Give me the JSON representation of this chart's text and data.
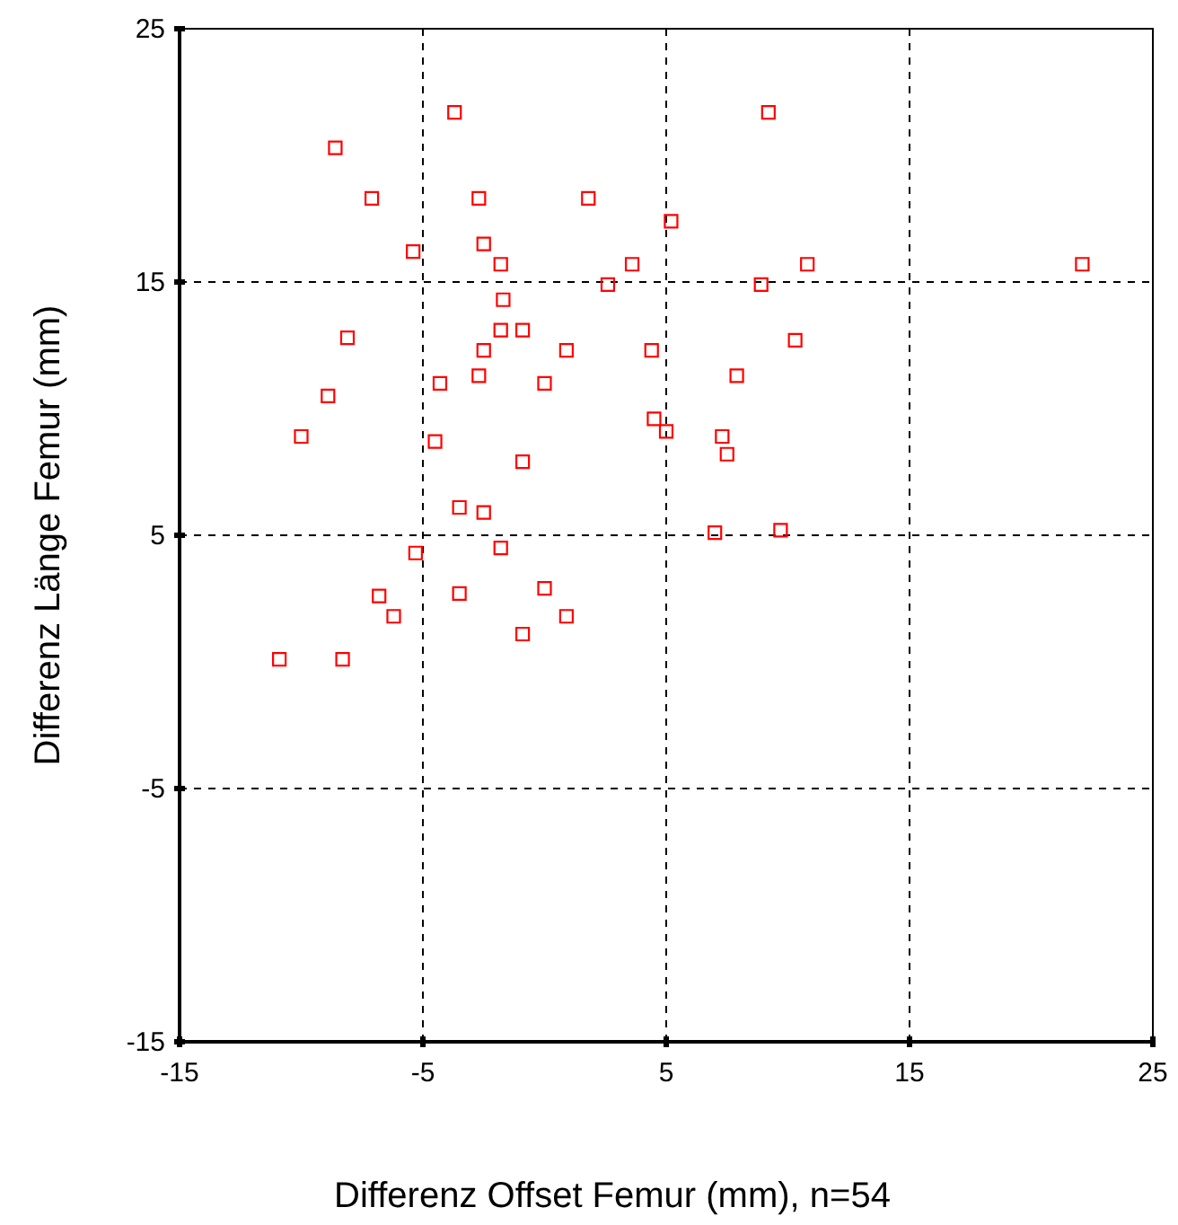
{
  "chart_data": {
    "type": "scatter",
    "xlabel": "Differenz Offset Femur (mm), n=54",
    "ylabel": "Differenz Länge Femur (mm)",
    "xlim": [
      -15,
      25
    ],
    "ylim": [
      -15,
      25
    ],
    "xticks": [
      -15,
      -5,
      5,
      15,
      25
    ],
    "yticks": [
      -15,
      -5,
      5,
      15,
      25
    ],
    "grid": true,
    "marker": "square",
    "series": [
      {
        "color": "#ff0000",
        "x": [
          -3.7,
          -8.6,
          -7.1,
          -2.7,
          1.8,
          9.2,
          -5.4,
          -2.5,
          5.2,
          -1.8,
          3.6,
          2.6,
          8.9,
          10.8,
          22.1,
          -1.7,
          -8.1,
          -1.8,
          -0.9,
          -2.5,
          0.9,
          4.4,
          10.3,
          -4.3,
          -2.7,
          0.0,
          7.9,
          -8.9,
          -10.0,
          -4.5,
          4.5,
          5.0,
          7.3,
          7.5,
          -0.9,
          -3.5,
          -2.5,
          7.0,
          9.7,
          -5.3,
          -1.8,
          -6.8,
          -3.5,
          0.0,
          -6.2,
          0.9,
          -0.9,
          -10.9,
          -8.3
        ],
        "values": [
          21.7,
          20.3,
          18.3,
          18.3,
          18.3,
          21.7,
          16.2,
          16.5,
          17.4,
          15.7,
          15.7,
          14.9,
          14.9,
          15.7,
          15.7,
          14.3,
          12.8,
          13.1,
          13.1,
          12.3,
          12.3,
          12.3,
          12.7,
          11.0,
          11.3,
          11.0,
          11.3,
          10.5,
          8.9,
          8.7,
          9.6,
          9.1,
          8.9,
          8.2,
          7.9,
          6.1,
          5.9,
          5.1,
          5.2,
          4.3,
          4.5,
          2.6,
          2.7,
          2.9,
          1.8,
          1.8,
          1.1,
          0.1,
          0.1
        ]
      }
    ]
  }
}
